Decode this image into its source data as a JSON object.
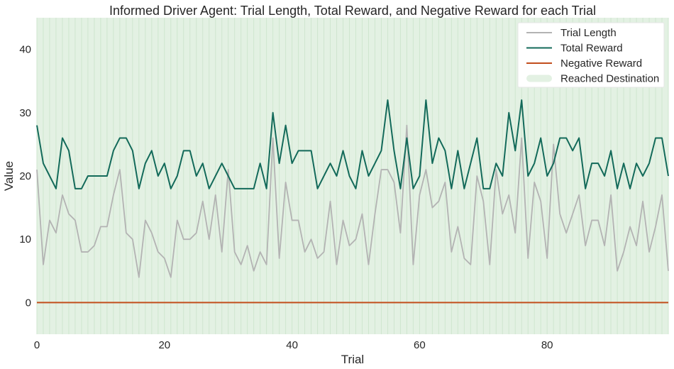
{
  "chart_data": {
    "type": "line",
    "title": "Informed Driver Agent: Trial Length, Total Reward, and Negative Reward for each Trial",
    "xlabel": "Trial",
    "ylabel": "Value",
    "xlim": [
      0,
      99
    ],
    "ylim": [
      -5,
      45
    ],
    "xticks": [
      0,
      20,
      40,
      60,
      80
    ],
    "yticks": [
      0,
      10,
      20,
      30,
      40
    ],
    "grid": false,
    "legend_position": "top-right",
    "x": [
      0,
      1,
      2,
      3,
      4,
      5,
      6,
      7,
      8,
      9,
      10,
      11,
      12,
      13,
      14,
      15,
      16,
      17,
      18,
      19,
      20,
      21,
      22,
      23,
      24,
      25,
      26,
      27,
      28,
      29,
      30,
      31,
      32,
      33,
      34,
      35,
      36,
      37,
      38,
      39,
      40,
      41,
      42,
      43,
      44,
      45,
      46,
      47,
      48,
      49,
      50,
      51,
      52,
      53,
      54,
      55,
      56,
      57,
      58,
      59,
      60,
      61,
      62,
      63,
      64,
      65,
      66,
      67,
      68,
      69,
      70,
      71,
      72,
      73,
      74,
      75,
      76,
      77,
      78,
      79,
      80,
      81,
      82,
      83,
      84,
      85,
      86,
      87,
      88,
      89,
      90,
      91,
      92,
      93,
      94,
      95,
      96,
      97,
      98,
      99
    ],
    "series": [
      {
        "name": "Trial Length",
        "color": "#b3b3b3",
        "values": [
          21,
          6,
          13,
          11,
          17,
          14,
          13,
          8,
          8,
          9,
          12,
          12,
          17,
          21,
          11,
          10,
          4,
          13,
          11,
          8,
          7,
          4,
          13,
          10,
          10,
          11,
          16,
          10,
          17,
          8,
          21,
          8,
          6,
          9,
          5,
          8,
          6,
          26,
          7,
          19,
          13,
          13,
          8,
          10,
          7,
          8,
          16,
          6,
          13,
          9,
          10,
          14,
          6,
          14,
          21,
          21,
          19,
          11,
          28,
          6,
          17,
          21,
          15,
          16,
          19,
          8,
          12,
          7,
          6,
          20,
          16,
          6,
          21,
          14,
          17,
          11,
          26,
          7,
          19,
          16,
          7,
          25,
          14,
          11,
          14,
          17,
          9,
          13,
          13,
          9,
          17,
          5,
          8,
          12,
          9,
          16,
          8,
          12,
          17,
          5
        ]
      },
      {
        "name": "Total Reward",
        "color": "#136a5a",
        "values": [
          28,
          22,
          20,
          18,
          26,
          24,
          18,
          18,
          20,
          20,
          20,
          20,
          24,
          26,
          26,
          24,
          18,
          22,
          24,
          20,
          22,
          18,
          20,
          24,
          24,
          20,
          22,
          18,
          20,
          22,
          20,
          18,
          18,
          18,
          18,
          22,
          18,
          30,
          22,
          28,
          22,
          24,
          24,
          24,
          18,
          20,
          22,
          20,
          24,
          20,
          18,
          24,
          20,
          22,
          24,
          32,
          24,
          18,
          26,
          18,
          20,
          32,
          22,
          26,
          24,
          18,
          24,
          18,
          22,
          26,
          18,
          18,
          22,
          20,
          30,
          24,
          32,
          20,
          22,
          26,
          20,
          22,
          26,
          26,
          24,
          26,
          18,
          22,
          22,
          20,
          24,
          18,
          22,
          18,
          22,
          20,
          22,
          26,
          26,
          20
        ]
      },
      {
        "name": "Negative Reward",
        "color": "#c24e1c",
        "values": [
          0,
          0,
          0,
          0,
          0,
          0,
          0,
          0,
          0,
          0,
          0,
          0,
          0,
          0,
          0,
          0,
          0,
          0,
          0,
          0,
          0,
          0,
          0,
          0,
          0,
          0,
          0,
          0,
          0,
          0,
          0,
          0,
          0,
          0,
          0,
          0,
          0,
          0,
          0,
          0,
          0,
          0,
          0,
          0,
          0,
          0,
          0,
          0,
          0,
          0,
          0,
          0,
          0,
          0,
          0,
          0,
          0,
          0,
          0,
          0,
          0,
          0,
          0,
          0,
          0,
          0,
          0,
          0,
          0,
          0,
          0,
          0,
          0,
          0,
          0,
          0,
          0,
          0,
          0,
          0,
          0,
          0,
          0,
          0,
          0,
          0,
          0,
          0,
          0,
          0,
          0,
          0,
          0,
          0,
          0,
          0,
          0,
          0,
          0,
          0
        ]
      }
    ],
    "highlight": {
      "name": "Reached Destination",
      "color": "#e3f1e3",
      "line_color": "#cfe6cf",
      "trials_reached": [
        0,
        1,
        2,
        3,
        4,
        5,
        6,
        7,
        8,
        9,
        10,
        11,
        12,
        13,
        14,
        15,
        16,
        17,
        18,
        19,
        20,
        21,
        22,
        23,
        24,
        25,
        26,
        27,
        28,
        29,
        30,
        31,
        32,
        33,
        34,
        35,
        36,
        37,
        38,
        39,
        40,
        41,
        42,
        43,
        44,
        45,
        46,
        47,
        48,
        49,
        50,
        51,
        52,
        53,
        54,
        55,
        56,
        57,
        58,
        59,
        60,
        61,
        62,
        63,
        64,
        65,
        66,
        67,
        68,
        69,
        70,
        71,
        72,
        73,
        74,
        75,
        76,
        77,
        78,
        79,
        80,
        81,
        82,
        83,
        84,
        85,
        86,
        87,
        88,
        89,
        90,
        91,
        92,
        93,
        94,
        95,
        96,
        97,
        98,
        99
      ]
    },
    "legend": [
      "Trial Length",
      "Total Reward",
      "Negative Reward",
      "Reached Destination"
    ]
  }
}
